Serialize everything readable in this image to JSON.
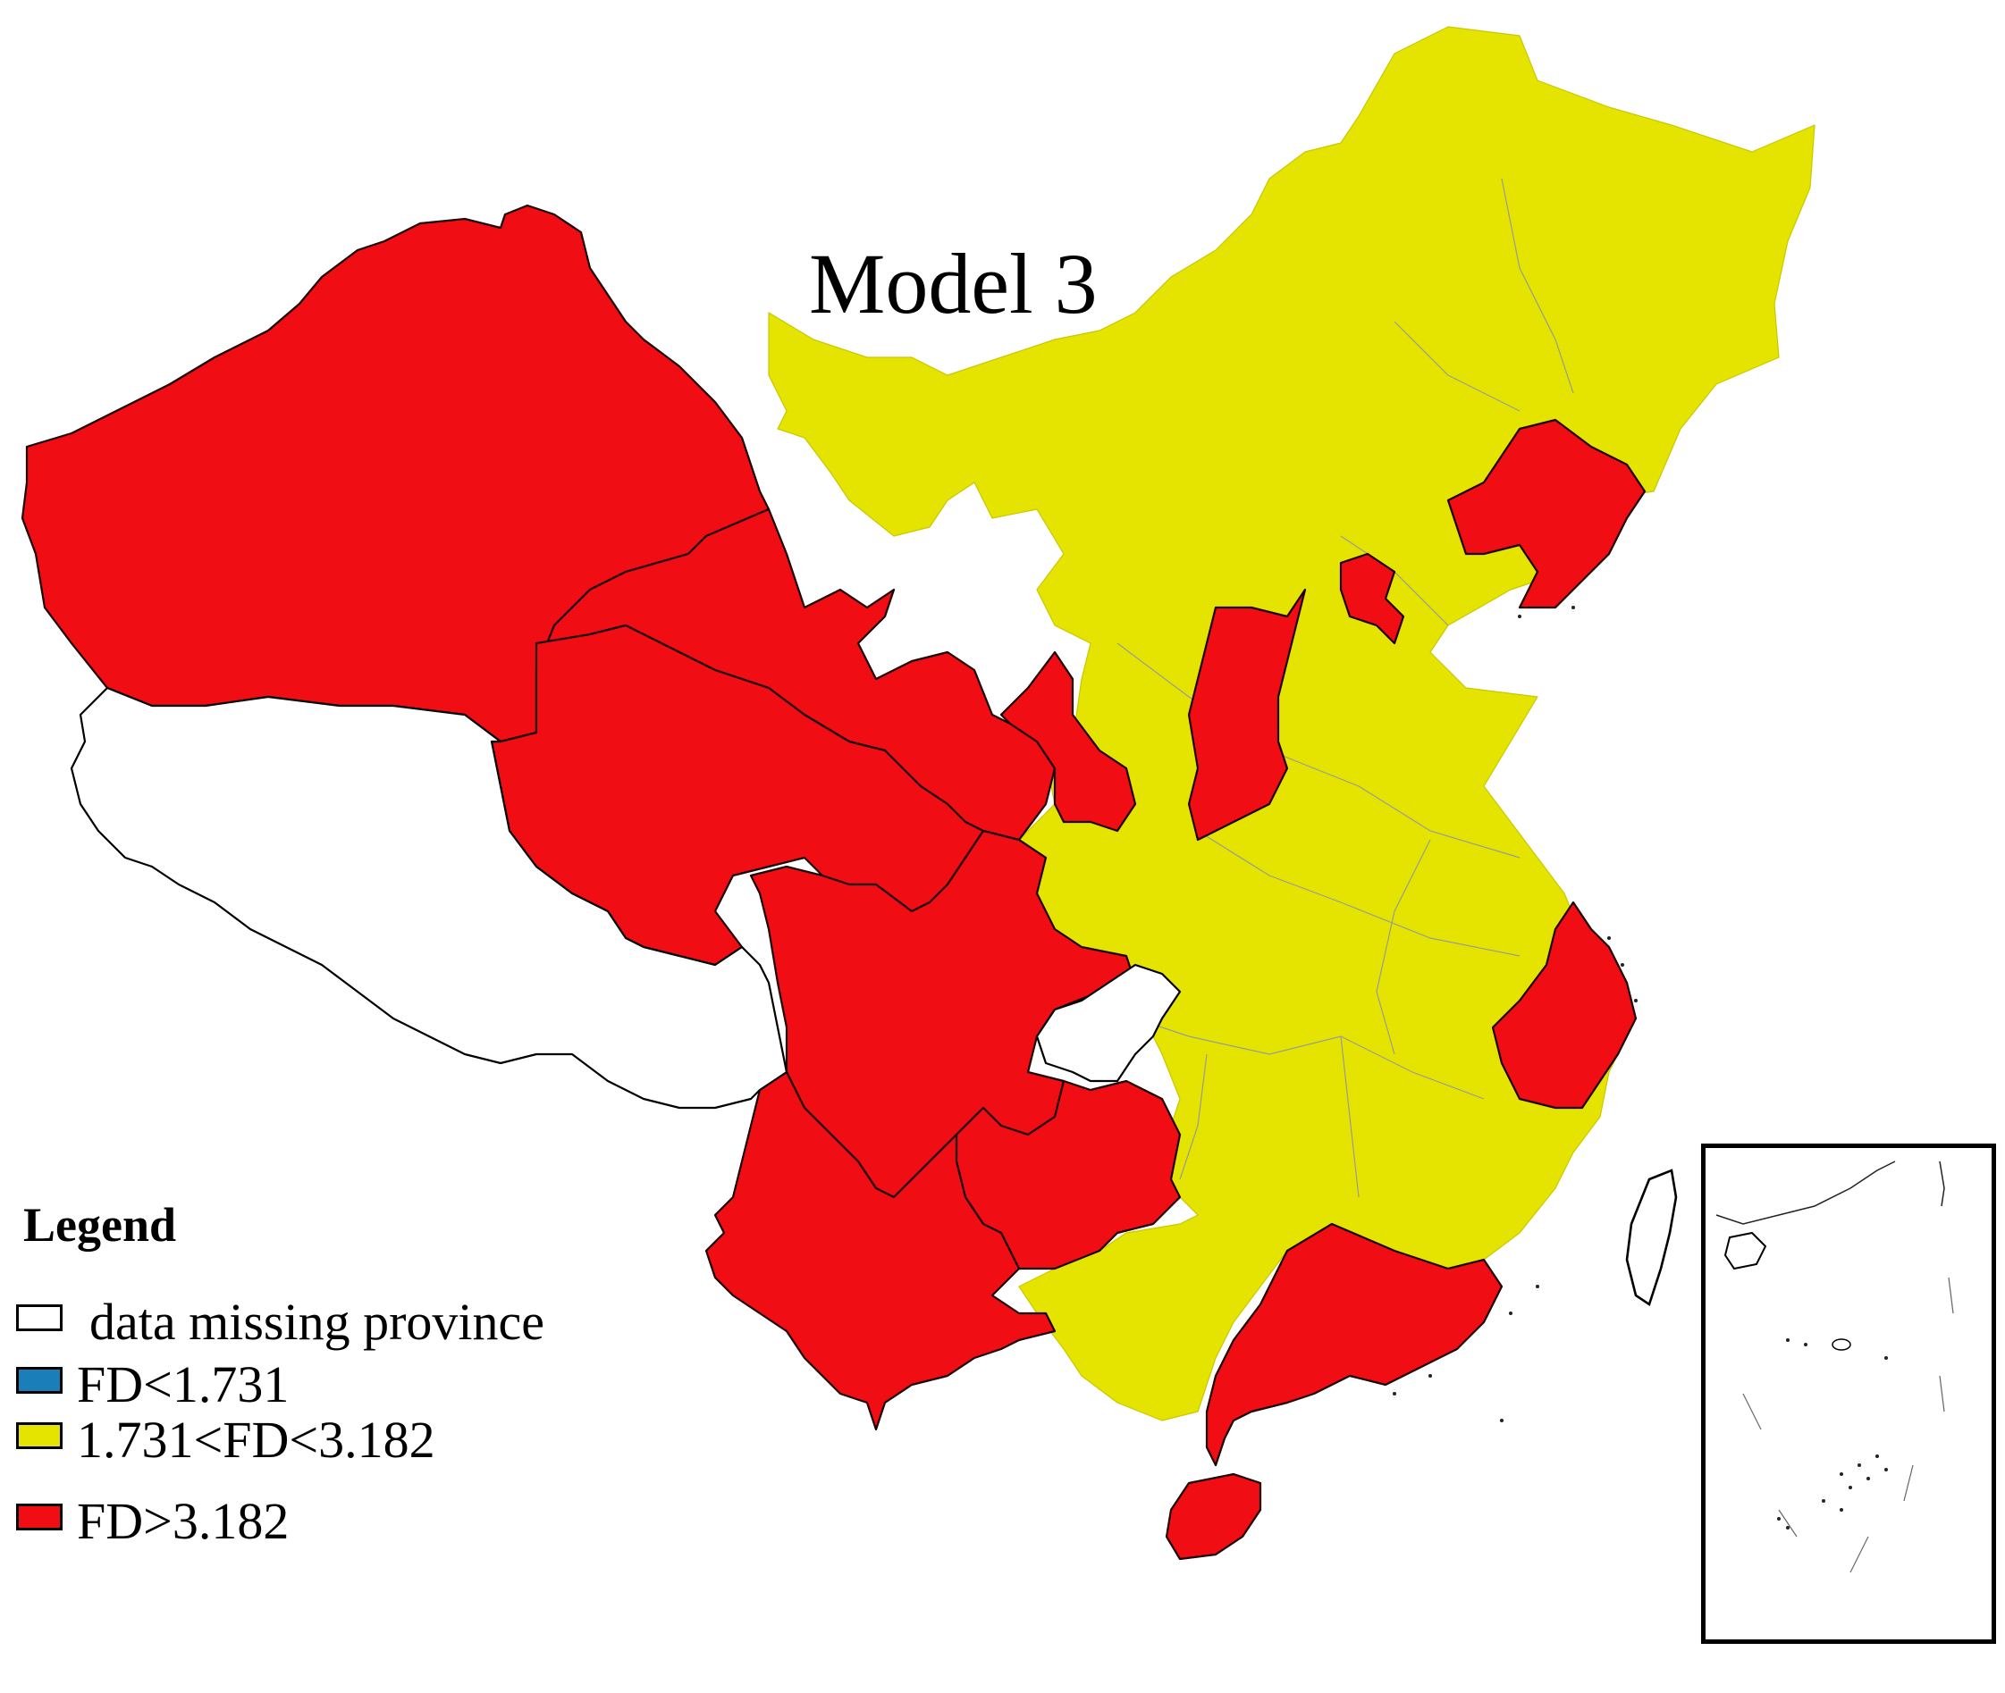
{
  "map": {
    "title": "Model 3",
    "colors": {
      "fd_high": "#f00d14",
      "fd_mid": "#e4e400",
      "fd_low": "#1a7fb8",
      "missing": "#ffffff"
    }
  },
  "legend": {
    "title": "Legend",
    "items": [
      {
        "label": "data missing province",
        "color": "#ffffff"
      },
      {
        "label": "FD<1.731",
        "color": "#1a7fb8"
      },
      {
        "label": "1.731<FD<3.182",
        "color": "#e4e400"
      },
      {
        "label": "FD>3.182",
        "color": "#f00d14"
      }
    ]
  }
}
